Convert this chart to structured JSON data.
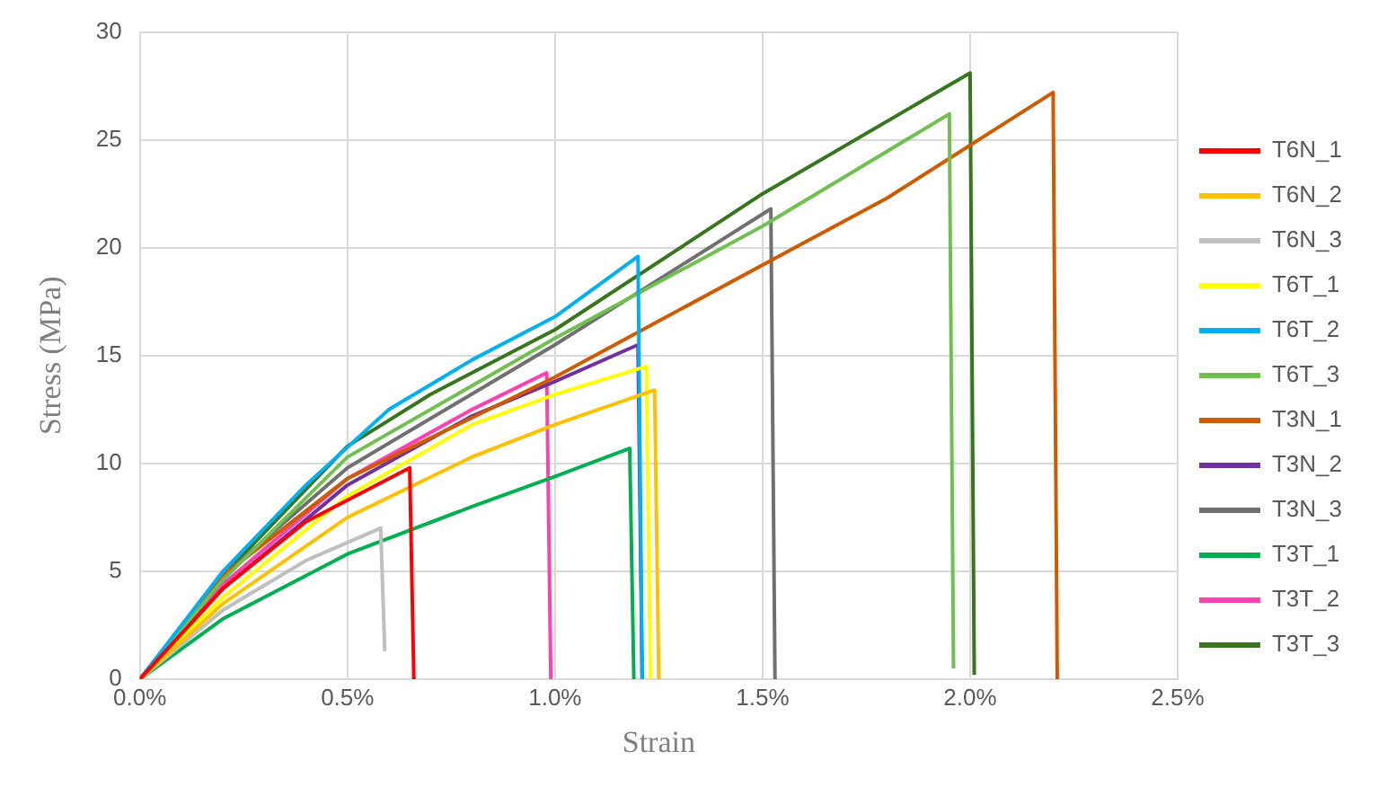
{
  "chart_data": {
    "type": "line",
    "xlabel": "Strain",
    "ylabel": "Stress (MPa)",
    "xlim": [
      0,
      2.5
    ],
    "xticks": [
      {
        "value": 0,
        "label": "0.0%"
      },
      {
        "value": 0.5,
        "label": "0.5%"
      },
      {
        "value": 1,
        "label": "1.0%"
      },
      {
        "value": 1.5,
        "label": "1.5%"
      },
      {
        "value": 2,
        "label": "2.0%"
      },
      {
        "value": 2.5,
        "label": "2.5%"
      }
    ],
    "ylim": [
      0,
      30
    ],
    "yticks": [
      0,
      5,
      10,
      15,
      20,
      25,
      30
    ],
    "grid": true,
    "legend": "right",
    "marker": "none",
    "series": [
      {
        "name": "T6N_1",
        "color": "#ff0000",
        "x": [
          0,
          0.2,
          0.4,
          0.65,
          0.66
        ],
        "values": [
          0,
          4.2,
          7.3,
          9.8,
          0
        ]
      },
      {
        "name": "T6N_2",
        "color": "#ffc000",
        "x": [
          0,
          0.2,
          0.5,
          0.8,
          1.0,
          1.24,
          1.25
        ],
        "values": [
          0,
          3.5,
          7.5,
          10.3,
          11.8,
          13.4,
          0
        ]
      },
      {
        "name": "T6N_3",
        "color": "#bfbfbf",
        "x": [
          0,
          0.2,
          0.4,
          0.58,
          0.59
        ],
        "values": [
          0,
          3.2,
          5.5,
          7.0,
          1.3
        ]
      },
      {
        "name": "T6T_1",
        "color": "#ffff00",
        "x": [
          0,
          0.2,
          0.5,
          0.8,
          1.0,
          1.22,
          1.23
        ],
        "values": [
          0,
          3.8,
          8.5,
          11.8,
          13.2,
          14.5,
          0
        ]
      },
      {
        "name": "T6T_2",
        "color": "#00b0f0",
        "x": [
          0,
          0.2,
          0.4,
          0.6,
          0.8,
          1.0,
          1.2,
          1.21
        ],
        "values": [
          0,
          5,
          9,
          12.5,
          14.8,
          16.8,
          19.6,
          0
        ]
      },
      {
        "name": "T6T_3",
        "color": "#70c050",
        "x": [
          0,
          0.2,
          0.5,
          1.0,
          1.5,
          1.95,
          1.96
        ],
        "values": [
          0,
          4.6,
          10.3,
          15.8,
          21,
          26.2,
          0.5
        ]
      },
      {
        "name": "T3N_1",
        "color": "#d05a00",
        "x": [
          0,
          0.2,
          0.5,
          1.0,
          1.5,
          1.8,
          2.2,
          2.21
        ],
        "values": [
          0,
          4.8,
          9.3,
          14,
          19.2,
          22.3,
          27.2,
          0
        ]
      },
      {
        "name": "T3N_2",
        "color": "#7030a0",
        "x": [
          0,
          0.2,
          0.5,
          0.8,
          1.0,
          1.2,
          1.21
        ],
        "values": [
          0,
          4.2,
          9,
          12.2,
          13.8,
          15.5,
          0
        ]
      },
      {
        "name": "T3N_3",
        "color": "#707070",
        "x": [
          0,
          0.2,
          0.5,
          1.0,
          1.52,
          1.53
        ],
        "values": [
          0,
          4.8,
          9.8,
          15.5,
          21.8,
          0
        ]
      },
      {
        "name": "T3T_1",
        "color": "#00b050",
        "x": [
          0,
          0.2,
          0.5,
          0.8,
          1.0,
          1.18,
          1.19
        ],
        "values": [
          0,
          2.8,
          5.8,
          8,
          9.4,
          10.7,
          0
        ]
      },
      {
        "name": "T3T_2",
        "color": "#ff40b0",
        "x": [
          0,
          0.2,
          0.5,
          0.8,
          0.98,
          0.99
        ],
        "values": [
          0,
          4.4,
          9.3,
          12.5,
          14.2,
          0
        ]
      },
      {
        "name": "T3T_3",
        "color": "#38761d",
        "x": [
          0,
          0.2,
          0.5,
          0.7,
          1.0,
          1.5,
          2.0,
          2.01
        ],
        "values": [
          0,
          4.8,
          10.8,
          13.2,
          16.2,
          22.5,
          28.1,
          0.2
        ]
      }
    ]
  }
}
